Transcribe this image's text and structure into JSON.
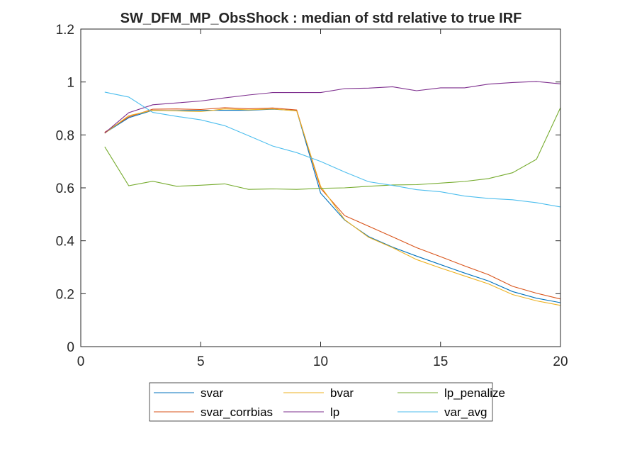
{
  "chart_data": {
    "type": "line",
    "title": "SW_DFM_MP_ObsShock : median of std relative to true IRF",
    "xlabel": "",
    "ylabel": "",
    "xlim": [
      0,
      20
    ],
    "ylim": [
      0,
      1.2
    ],
    "xticks": [
      0,
      5,
      10,
      15,
      20
    ],
    "xtick_labels": [
      "0",
      "5",
      "10",
      "15",
      "20"
    ],
    "yticks": [
      0,
      0.2,
      0.4,
      0.6,
      0.8,
      1,
      1.2
    ],
    "ytick_labels": [
      "0",
      "0.2",
      "0.4",
      "0.6",
      "0.8",
      "1",
      "1.2"
    ],
    "grid": false,
    "legend_position": "bottom-outside",
    "x": [
      1,
      2,
      3,
      4,
      5,
      6,
      7,
      8,
      9,
      10,
      11,
      12,
      13,
      14,
      15,
      16,
      17,
      18,
      19,
      20
    ],
    "series": [
      {
        "name": "svar",
        "color": "#0072BD",
        "values": [
          0.807,
          0.865,
          0.893,
          0.892,
          0.893,
          0.893,
          0.893,
          0.897,
          0.892,
          0.58,
          0.478,
          0.416,
          0.376,
          0.342,
          0.31,
          0.278,
          0.248,
          0.208,
          0.183,
          0.166
        ]
      },
      {
        "name": "svar_corrbias",
        "color": "#D95319",
        "values": [
          0.81,
          0.868,
          0.897,
          0.898,
          0.896,
          0.903,
          0.899,
          0.902,
          0.894,
          0.598,
          0.495,
          0.455,
          0.415,
          0.374,
          0.34,
          0.305,
          0.272,
          0.228,
          0.202,
          0.18
        ]
      },
      {
        "name": "bvar",
        "color": "#EDB120",
        "values": [
          0.806,
          0.873,
          0.893,
          0.891,
          0.888,
          0.898,
          0.895,
          0.898,
          0.891,
          0.606,
          0.48,
          0.413,
          0.374,
          0.329,
          0.297,
          0.267,
          0.237,
          0.197,
          0.173,
          0.156
        ]
      },
      {
        "name": "lp",
        "color": "#7E2F8E",
        "values": [
          0.807,
          0.884,
          0.914,
          0.921,
          0.928,
          0.94,
          0.951,
          0.96,
          0.96,
          0.96,
          0.975,
          0.977,
          0.982,
          0.967,
          0.978,
          0.978,
          0.992,
          0.998,
          1.002,
          0.993
        ]
      },
      {
        "name": "lp_penalize",
        "color": "#77AC30",
        "values": [
          0.755,
          0.608,
          0.625,
          0.606,
          0.61,
          0.615,
          0.594,
          0.596,
          0.594,
          0.598,
          0.6,
          0.606,
          0.611,
          0.612,
          0.618,
          0.624,
          0.635,
          0.657,
          0.708,
          0.903
        ]
      },
      {
        "name": "var_avg",
        "color": "#4DBEEE",
        "values": [
          0.962,
          0.943,
          0.885,
          0.87,
          0.857,
          0.835,
          0.797,
          0.758,
          0.733,
          0.7,
          0.66,
          0.623,
          0.609,
          0.593,
          0.585,
          0.569,
          0.56,
          0.555,
          0.544,
          0.528
        ]
      }
    ]
  }
}
